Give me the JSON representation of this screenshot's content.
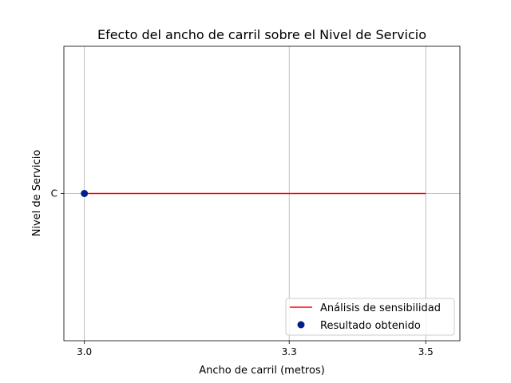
{
  "chart_data": {
    "type": "line",
    "title": "Efecto del ancho de carril sobre el Nivel de Servicio",
    "xlabel": "Ancho de carril (metros)",
    "ylabel": "Nivel de Servicio",
    "xlim": [
      2.97,
      3.55
    ],
    "x_ticks": [
      {
        "value": 3.0,
        "label": "3.0"
      },
      {
        "value": 3.3,
        "label": "3.3"
      },
      {
        "value": 3.5,
        "label": "3.5"
      }
    ],
    "y_categories": [
      "C"
    ],
    "grid": true,
    "legend_position": "lower-right",
    "series": [
      {
        "name": "Análisis de sensibilidad",
        "kind": "line",
        "color": "#ff0000",
        "x": [
          3.0,
          3.3,
          3.5
        ],
        "y": [
          "C",
          "C",
          "C"
        ]
      },
      {
        "name": "Resultado obtenido",
        "kind": "scatter",
        "color": "#00208c",
        "x": [
          3.0
        ],
        "y": [
          "C"
        ]
      }
    ]
  }
}
